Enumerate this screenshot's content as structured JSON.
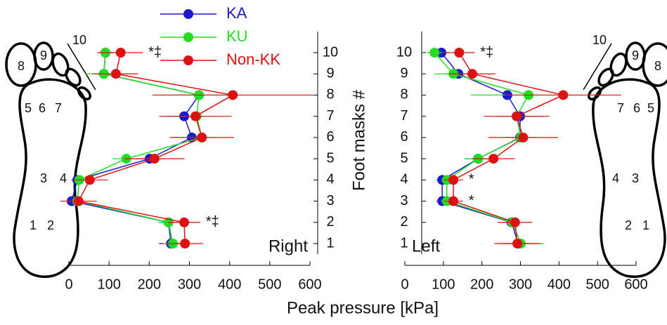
{
  "xlabel": "Peak pressure [kPa]",
  "ylabel": "Foot masks #",
  "chart_data": [
    {
      "type": "dot-error",
      "panel": "Right",
      "side": "right",
      "categories": [
        "1",
        "2",
        "3",
        "4",
        "5",
        "6",
        "7",
        "8",
        "9",
        "10"
      ],
      "xlim": [
        0,
        600
      ],
      "xticks": [
        0,
        100,
        200,
        300,
        400,
        500,
        600
      ],
      "series": [
        {
          "name": "KA",
          "color": "#1a1acc",
          "values": [
            254,
            248,
            7,
            21,
            201,
            306,
            287,
            324,
            87,
            91
          ],
          "errors": [
            30,
            25,
            15,
            15,
            35,
            40,
            45,
            60,
            30,
            20
          ]
        },
        {
          "name": "KU",
          "color": "#22dd22",
          "values": [
            259,
            248,
            21,
            26,
            143,
            331,
            318,
            324,
            87,
            91
          ],
          "errors": [
            25,
            25,
            20,
            20,
            35,
            40,
            45,
            110,
            45,
            20
          ]
        },
        {
          "name": "Non-KK",
          "color": "#dd1111",
          "values": [
            289,
            287,
            24,
            52,
            213,
            331,
            315,
            408,
            117,
            129
          ],
          "errors": [
            45,
            40,
            45,
            45,
            75,
            80,
            90,
            200,
            55,
            55
          ]
        }
      ],
      "annotations": [
        {
          "text": "*‡",
          "at": 10
        },
        {
          "text": "*‡",
          "at": 2
        }
      ],
      "foot_labels": [
        "1",
        "2",
        "3",
        "4",
        "5",
        "6",
        "7",
        "8",
        "9",
        "10"
      ]
    },
    {
      "type": "dot-error",
      "panel": "Left",
      "side": "left",
      "categories": [
        "1",
        "2",
        "3",
        "4",
        "5",
        "6",
        "7",
        "8",
        "9",
        "10"
      ],
      "xlim": [
        0,
        600
      ],
      "xticks": [
        0,
        100,
        200,
        300,
        400,
        500,
        600
      ],
      "series": [
        {
          "color": "#1a1acc",
          "values": [
            294,
            277,
            97,
            97,
            190,
            299,
            299,
            266,
            139,
            95
          ],
          "errors": [
            40,
            20,
            15,
            15,
            35,
            40,
            60,
            80,
            35,
            20
          ]
        },
        {
          "color": "#22dd22",
          "values": [
            301,
            279,
            109,
            109,
            190,
            301,
            290,
            321,
            126,
            77
          ],
          "errors": [
            60,
            20,
            15,
            15,
            35,
            45,
            50,
            150,
            50,
            20
          ]
        },
        {
          "color": "#dd1111",
          "values": [
            292,
            286,
            126,
            126,
            230,
            307,
            290,
            411,
            175,
            141
          ],
          "errors": [
            60,
            45,
            25,
            25,
            55,
            90,
            85,
            150,
            60,
            40
          ]
        }
      ],
      "annotations": [
        {
          "text": "*‡",
          "at": 10
        },
        {
          "text": "*",
          "at": 4
        },
        {
          "text": "*",
          "at": 3
        }
      ],
      "foot_labels": [
        "1",
        "2",
        "3",
        "4",
        "5",
        "6",
        "7",
        "8",
        "9",
        "10"
      ]
    }
  ]
}
